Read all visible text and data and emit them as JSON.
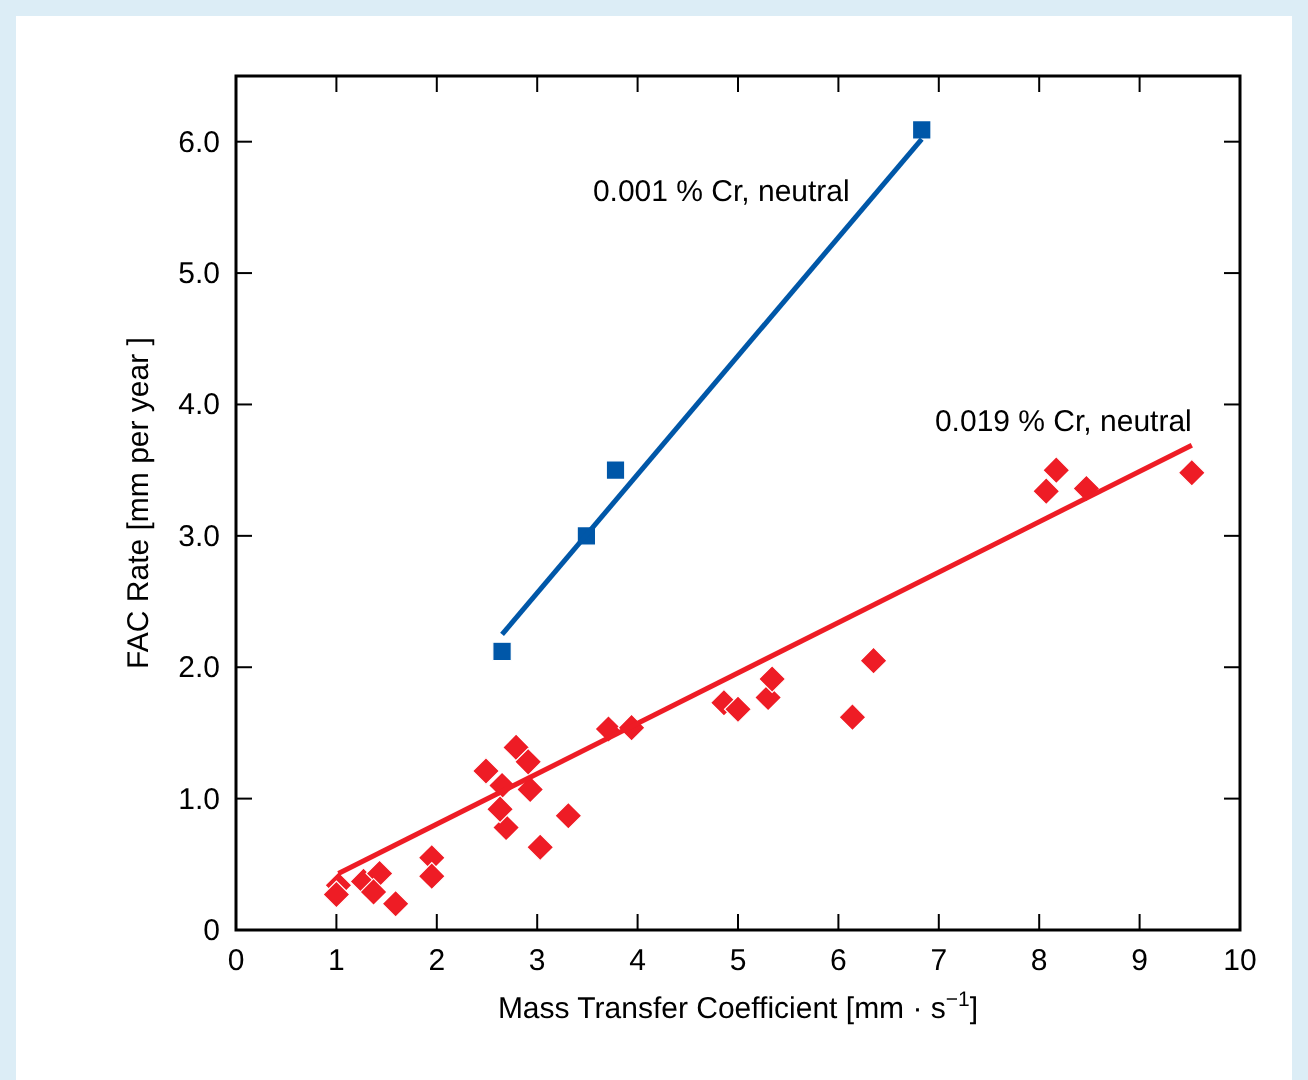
{
  "chart_data": {
    "type": "scatter",
    "xlabel": "Mass Transfer Coefficient [mm · s$^{−1}$]",
    "ylabel": "FAC Rate  [mm per year ]",
    "xlim": [
      0,
      10
    ],
    "xticks": [
      0,
      1,
      2,
      3,
      4,
      5,
      6,
      7,
      8,
      9,
      10
    ],
    "ylim": [
      0,
      6.5
    ],
    "yticks": [
      0,
      {
        "value": 1,
        "label": "1.0"
      },
      {
        "value": 2,
        "label": "2.0"
      },
      {
        "value": 3,
        "label": "3.0"
      },
      {
        "value": 4,
        "label": "4.0"
      },
      {
        "value": 5,
        "label": "5.0"
      },
      {
        "value": 6,
        "label": "6.0"
      }
    ],
    "grid": false,
    "legend": false,
    "series": [
      {
        "marker": "square",
        "color": "#0057a8",
        "x": [
          2.65,
          3.49,
          3.78,
          6.83
        ],
        "values": [
          2.12,
          3.0,
          3.5,
          6.09
        ]
      },
      {
        "type": "line",
        "name": "0.001 % Cr, neutral",
        "marker": "none",
        "color": "#0057a8",
        "x": [
          2.65,
          6.83
        ],
        "values": [
          2.25,
          6.02
        ]
      },
      {
        "marker": "diamond",
        "color": "#ee1c25",
        "x": [
          1.02,
          1.0,
          1.27,
          1.43,
          1.37,
          1.59,
          1.95,
          1.95,
          2.49,
          2.65,
          2.79,
          2.91,
          2.69,
          2.63,
          2.93,
          3.03,
          3.31,
          3.71,
          3.94,
          4.86,
          5.0,
          5.3,
          5.34,
          6.14,
          6.35,
          8.07,
          8.17,
          8.47,
          9.52
        ],
        "values": [
          0.34,
          0.27,
          0.37,
          0.43,
          0.29,
          0.2,
          0.55,
          0.41,
          1.21,
          1.1,
          1.39,
          1.28,
          0.78,
          0.92,
          1.07,
          0.63,
          0.87,
          1.53,
          1.54,
          1.73,
          1.68,
          1.77,
          1.91,
          1.62,
          2.05,
          3.34,
          3.5,
          3.36,
          3.48
        ]
      },
      {
        "type": "line",
        "name": "0.019 % Cr, neutral",
        "marker": "none",
        "color": "#ee1c25",
        "x": [
          1.02,
          9.52
        ],
        "values": [
          0.43,
          3.69
        ]
      }
    ]
  }
}
